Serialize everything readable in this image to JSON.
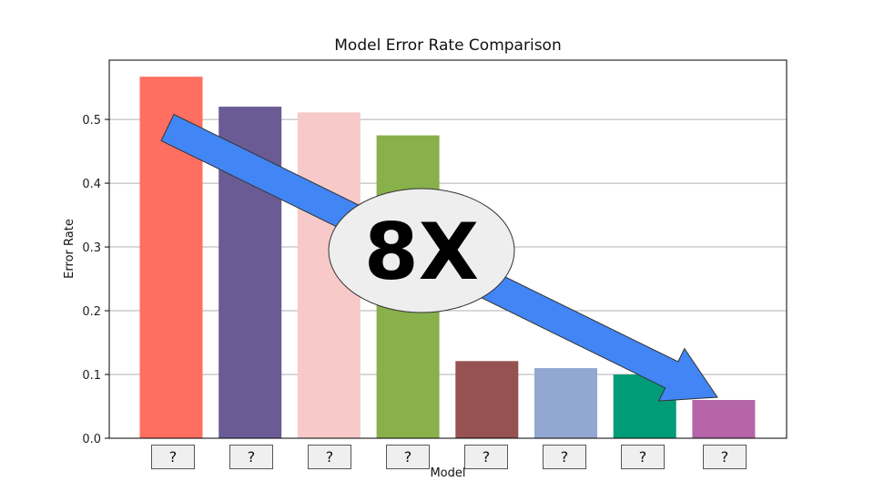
{
  "chart_data": {
    "type": "bar",
    "title": "Model Error Rate Comparison",
    "xlabel": "Model",
    "ylabel": "Error Rate",
    "categories": [
      "?",
      "?",
      "?",
      "?",
      "?",
      "?",
      "?",
      "?"
    ],
    "values": [
      0.567,
      0.52,
      0.511,
      0.475,
      0.121,
      0.11,
      0.1,
      0.06
    ],
    "bar_colors": [
      "#ff6f61",
      "#6b5b95",
      "#f7cac9",
      "#88b04b",
      "#955251",
      "#92a8d1",
      "#009b77",
      "#b565a7"
    ],
    "ylim": [
      0,
      0.593
    ],
    "yticks": [
      0.0,
      0.1,
      0.2,
      0.3,
      0.4,
      0.5
    ],
    "ytick_labels": [
      "0.0",
      "0.1",
      "0.2",
      "0.3",
      "0.4",
      "0.5"
    ],
    "grid": "y",
    "annotation": {
      "text": "8X",
      "arrow_color": "#4285f4",
      "ellipse_color": "#eeeeee",
      "arrow_from": {
        "category": 0,
        "y": 0.5
      },
      "arrow_to": {
        "category": 7,
        "y": 0.06
      }
    }
  }
}
